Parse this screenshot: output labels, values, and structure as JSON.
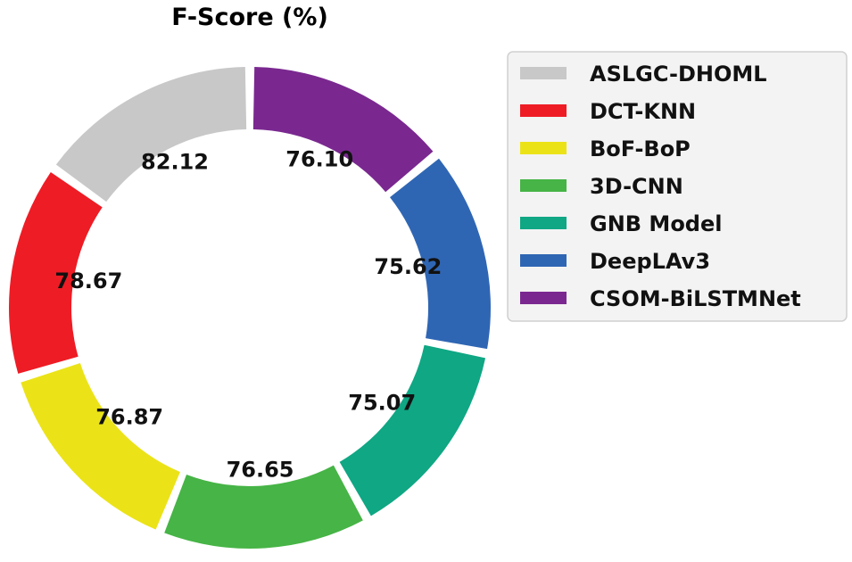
{
  "chart_data": {
    "type": "pie",
    "variant": "donut",
    "title": "F-Score (%)",
    "categories": [
      "ASLGC-DHOML",
      "DCT-KNN",
      "BoF-BoP",
      "3D-CNN",
      "GNB Model",
      "DeepLAv3",
      "CSOM-BiLSTMNet"
    ],
    "values": [
      82.12,
      78.67,
      76.87,
      76.65,
      75.07,
      75.62,
      76.1
    ],
    "labels": [
      "82.12",
      "78.67",
      "76.87",
      "76.65",
      "75.07",
      "75.62",
      "76.10"
    ],
    "colors": [
      "#c8c8c8",
      "#ee1c25",
      "#ebe318",
      "#46b446",
      "#0fa784",
      "#2f66b4",
      "#7a2890"
    ],
    "start_angle": "top",
    "direction": "counterclockwise",
    "legend_position": "right"
  }
}
